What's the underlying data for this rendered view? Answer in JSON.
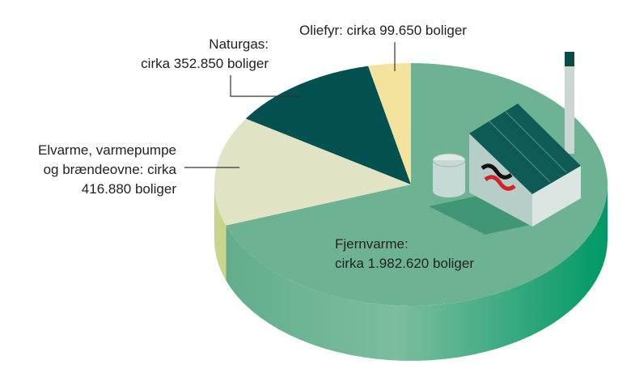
{
  "chart_data": {
    "type": "pie",
    "style": "3d",
    "unit": "boliger",
    "slices": [
      {
        "name": "Fjernvarme",
        "value": 1982620,
        "label": "Fjernvarme:\ncirka 1.982.620 boliger",
        "color": "#6db393",
        "side_color": "#1f9a6c"
      },
      {
        "name": "Elvarme, varmepumpe og brændeovne",
        "value": 416880,
        "label": "Elvarme, varmepumpe\nog brændeovne: cirka\n416.880 boliger",
        "color": "#e0e3c4",
        "side_color": "#c9d58d"
      },
      {
        "name": "Naturgas",
        "value": 352850,
        "label": "Naturgas:\ncirka 352.850 boliger",
        "color": "#02504f",
        "side_color": "#013c3b"
      },
      {
        "name": "Oliefyr",
        "value": 99650,
        "label": "Oliefyr: cirka 99.650 boliger",
        "color": "#f3e39d",
        "side_color": "#d9c66e"
      }
    ]
  }
}
